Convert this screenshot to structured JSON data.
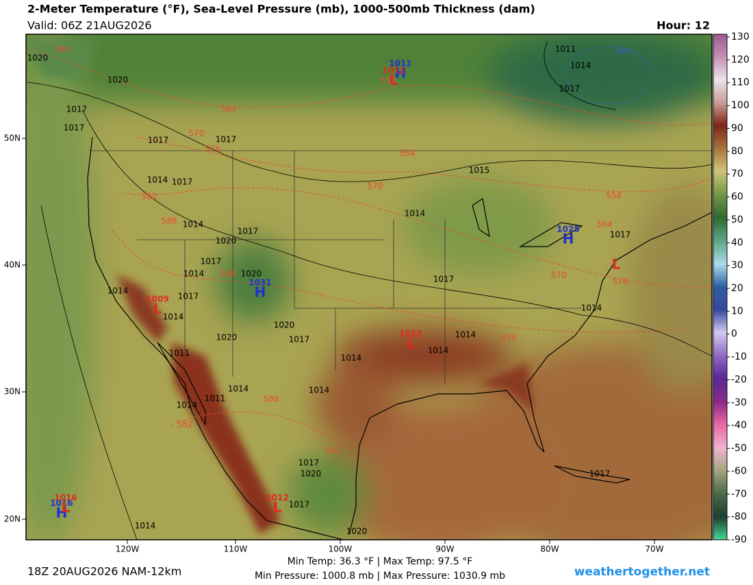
{
  "header": {
    "title": "2-Meter Temperature (°F), Sea-Level Pressure (mb), 1000-500mb Thickness (dam)",
    "valid": "Valid: 06Z 21AUG2026",
    "hour": "Hour: 12"
  },
  "colorbar": {
    "ticks": [
      130,
      120,
      110,
      100,
      90,
      80,
      70,
      60,
      50,
      40,
      30,
      20,
      10,
      0,
      -10,
      -20,
      -30,
      -40,
      -50,
      -60,
      -70,
      -80,
      -90
    ]
  },
  "map": {
    "lat_labels": [
      "50N",
      "40N",
      "30N",
      "20N"
    ],
    "lon_labels": [
      "120W",
      "110W",
      "100W",
      "90W",
      "80W",
      "70W"
    ],
    "isobar_labels": [
      "1020",
      "1020",
      "1017",
      "1017",
      "1017",
      "1017",
      "1014",
      "1017",
      "1014",
      "1017",
      "1020",
      "1017",
      "1020",
      "1014",
      "1017",
      "1014",
      "1014",
      "1020",
      "1017",
      "1020",
      "1011",
      "1014",
      "1014",
      "1014",
      "1017",
      "1014",
      "1014",
      "1017",
      "1017",
      "1014",
      "1011",
      "1014",
      "1014",
      "1011",
      "1014",
      "1017",
      "1020",
      "1017",
      "1020",
      "1017",
      "1014",
      "1015"
    ],
    "thickness_labels": [
      "564",
      "564",
      "570",
      "576",
      "564",
      "570",
      "582",
      "588",
      "588",
      "588",
      "582",
      "582",
      "576",
      "576",
      "570",
      "564",
      "558",
      "558",
      "540"
    ],
    "centers": [
      {
        "letter": "H",
        "pressure": "1011"
      },
      {
        "letter": "L",
        "pressure": "1011"
      },
      {
        "letter": "H",
        "pressure": "1025"
      },
      {
        "letter": "H",
        "pressure": "1031"
      },
      {
        "letter": "L",
        "pressure": "1009"
      },
      {
        "letter": "L",
        "pressure": "1012"
      },
      {
        "letter": "L"
      },
      {
        "letter": "L",
        "pressure": "1012"
      },
      {
        "letter": "H",
        "pressure": "1016"
      },
      {
        "letter": "L",
        "pressure": "1016"
      }
    ]
  },
  "footer": {
    "run": "18Z 20AUG2026 NAM-12km",
    "temp_range": "Min Temp:  36.3 °F | Max Temp:  97.5 °F",
    "pressure_range": "Min Pressure: 1000.8 mb | Max Pressure: 1030.9 mb",
    "site": "weathertogether.net"
  }
}
